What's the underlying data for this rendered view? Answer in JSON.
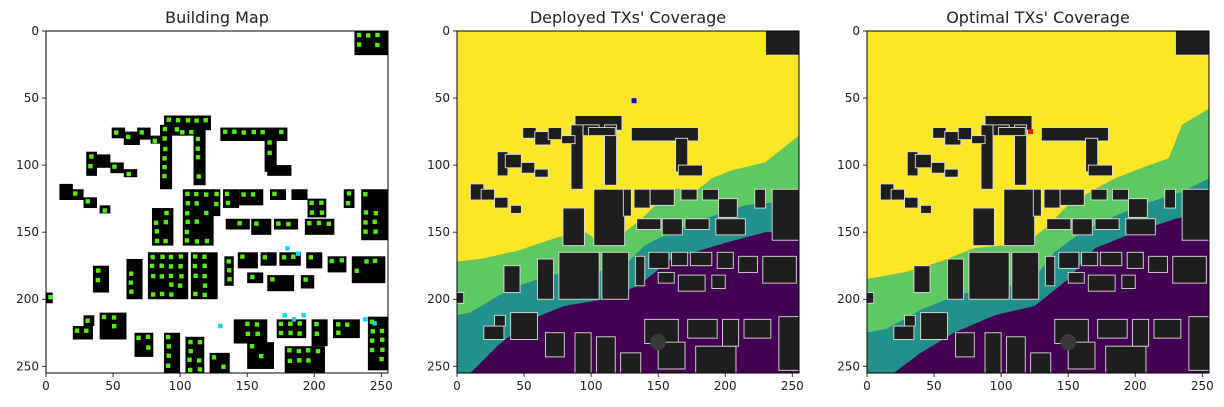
{
  "chart_data": [
    {
      "type": "heatmap",
      "title": "Building Map",
      "xlim": [
        0,
        255
      ],
      "ylim": [
        255,
        0
      ],
      "xticks": [
        0,
        50,
        100,
        150,
        200,
        250
      ],
      "yticks": [
        0,
        50,
        100,
        150,
        200,
        250
      ],
      "palette": {
        "background": "#ffffff",
        "building": "#000000",
        "sensor": "#55ee00",
        "special_sensor": "#00d8ff"
      }
    },
    {
      "type": "heatmap",
      "title": "Deployed TXs' Coverage",
      "xlim": [
        0,
        255
      ],
      "ylim": [
        255,
        0
      ],
      "xticks": [
        0,
        50,
        100,
        150,
        200,
        250
      ],
      "yticks": [
        0,
        50,
        100,
        150,
        200,
        250
      ],
      "palette": {
        "high": "#fde725",
        "mid_high": "#5ec962",
        "mid": "#21918c",
        "low": "#440154",
        "building": "#1e1e1e",
        "outline": "#dddddd"
      },
      "tx_marker": {
        "x": 132,
        "y": 52,
        "color": "#0000ff"
      }
    },
    {
      "type": "heatmap",
      "title": "Optimal TXs' Coverage",
      "xlim": [
        0,
        255
      ],
      "ylim": [
        255,
        0
      ],
      "xticks": [
        0,
        50,
        100,
        150,
        200,
        250
      ],
      "yticks": [
        0,
        50,
        100,
        150,
        200,
        250
      ],
      "palette": {
        "high": "#fde725",
        "mid_high": "#5ec962",
        "mid": "#21918c",
        "low": "#440154",
        "building": "#1e1e1e",
        "outline": "#dddddd"
      },
      "tx_marker": {
        "x": 122,
        "y": 75,
        "color": "#ff0000"
      }
    }
  ]
}
